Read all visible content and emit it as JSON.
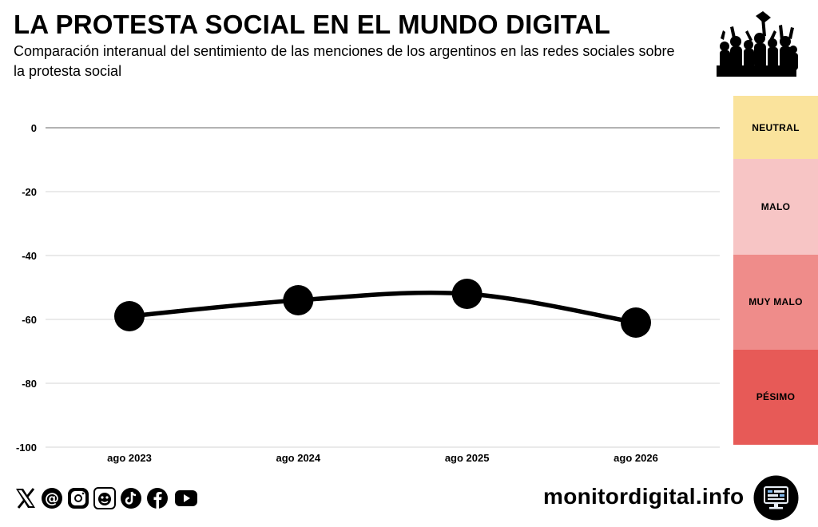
{
  "header": {
    "title": "LA PROTESTA SOCIAL EN EL MUNDO DIGITAL",
    "subtitle": "Comparación interanual del sentimiento de las menciones de los argentinos en las redes sociales sobre la protesta social"
  },
  "chart_data": {
    "type": "line",
    "title": "LA PROTESTA SOCIAL EN EL MUNDO DIGITAL",
    "subtitle": "Comparación interanual del sentimiento de las menciones de los argentinos en las redes sociales sobre la protesta social",
    "categories": [
      "ago 2023",
      "ago 2024",
      "ago 2025",
      "ago 2026"
    ],
    "series": [
      {
        "values": [
          -59,
          -54,
          -52,
          -61
        ],
        "color": "#000000"
      }
    ],
    "ylim": [
      -100,
      0
    ],
    "yticks": [
      "0",
      "-20",
      "-40",
      "-60",
      "-80",
      "-100"
    ],
    "grid": true,
    "bands": [
      {
        "label": "NEUTRAL",
        "from": 10,
        "to": -10,
        "color": "#fae39c"
      },
      {
        "label": "MALO",
        "from": -10,
        "to": -40,
        "color": "#f7c5c5"
      },
      {
        "label": "MUY MALO",
        "from": -40,
        "to": -70,
        "color": "#ef8c8a"
      },
      {
        "label": "PÉSIMO",
        "from": -70,
        "to": -100,
        "color": "#e75a57"
      }
    ]
  },
  "footer": {
    "site": "monitordigital.info",
    "social_icons": [
      "x-icon",
      "threads-icon",
      "instagram-icon",
      "mastodon-icon",
      "tiktok-icon",
      "facebook-icon",
      "youtube-icon"
    ]
  },
  "images": {
    "hero": "protest-crowd-icon",
    "badge": "monitor-icon"
  }
}
